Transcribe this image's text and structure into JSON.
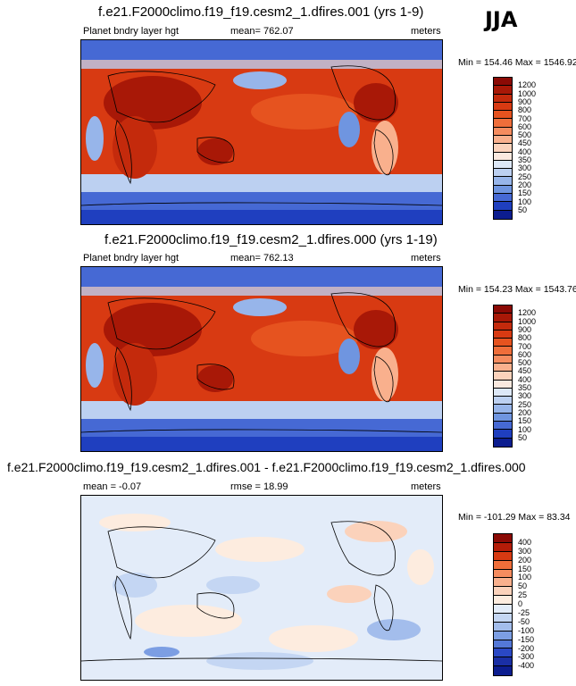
{
  "season": "JJA",
  "panels": [
    {
      "title": "f.e21.F2000climo.f19_f19.cesm2_1.dfires.001 (yrs 1-9)",
      "left": "Planet bndry layer hgt",
      "center": "mean= 762.07",
      "right": "meters",
      "minmax": "Min = 154.46 Max = 1546.92",
      "levels": [
        "1200",
        "1000",
        "900",
        "800",
        "700",
        "600",
        "500",
        "450",
        "400",
        "350",
        "300",
        "250",
        "200",
        "150",
        "100",
        "50"
      ]
    },
    {
      "title": "f.e21.F2000climo.f19_f19.cesm2_1.dfires.000 (yrs 1-19)",
      "left": "Planet bndry layer hgt",
      "center": "mean= 762.13",
      "right": "meters",
      "minmax": "Min = 154.23 Max = 1543.76",
      "levels": [
        "1200",
        "1000",
        "900",
        "800",
        "700",
        "600",
        "500",
        "450",
        "400",
        "350",
        "300",
        "250",
        "200",
        "150",
        "100",
        "50"
      ]
    },
    {
      "title": "f.e21.F2000climo.f19_f19.cesm2_1.dfires.001 - f.e21.F2000climo.f19_f19.cesm2_1.dfires.000",
      "left": "mean =  -0.07",
      "center": "rmse =  18.99",
      "right": "meters",
      "minmax": "Min = -101.29 Max =  83.34",
      "levels": [
        "400",
        "300",
        "200",
        "150",
        "100",
        "50",
        "25",
        "0",
        "-25",
        "-50",
        "-100",
        "-150",
        "-200",
        "-300",
        "-400"
      ]
    }
  ],
  "colors": {
    "abs_scale": [
      "#8b0a05",
      "#a81807",
      "#c42a0c",
      "#d83a12",
      "#e6531f",
      "#ef6e3a",
      "#f58c5f",
      "#f9b08d",
      "#fbd2bb",
      "#fae9df",
      "#dde8f7",
      "#bcd0f1",
      "#97b5ea",
      "#6f95e0",
      "#4669d4",
      "#1f3fbf",
      "#0c1d8f"
    ],
    "diff_scale": [
      "#8b0a05",
      "#b41c08",
      "#d83a12",
      "#ef6e3a",
      "#f58c5f",
      "#f9b08d",
      "#fbd2bb",
      "#fdecdf",
      "#e3ecf9",
      "#c4d6f3",
      "#a3bdec",
      "#7c9ee3",
      "#5478d8",
      "#2a48c5",
      "#1a2fa5",
      "#0c1d8f"
    ]
  }
}
